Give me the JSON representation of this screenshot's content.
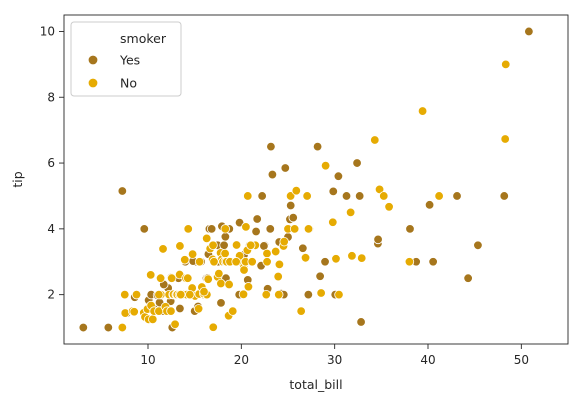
{
  "chart_data": {
    "type": "scatter",
    "title": "",
    "xlabel": "total_bill",
    "ylabel": "tip",
    "xlim": [
      1,
      55
    ],
    "ylim": [
      0.5,
      10.5
    ],
    "x_ticks": [
      10,
      20,
      30,
      40,
      50
    ],
    "y_ticks": [
      2,
      4,
      6,
      8,
      10
    ],
    "x_tick_labels": [
      "10",
      "20",
      "30",
      "40",
      "50"
    ],
    "y_tick_labels": [
      "2",
      "4",
      "6",
      "8",
      "10"
    ],
    "grid": false,
    "legend": {
      "title": "smoker",
      "placement": "top-left",
      "entries": [
        {
          "label": "Yes",
          "color": "#a6761d"
        },
        {
          "label": "No",
          "color": "#e6ab02"
        }
      ]
    },
    "series": [
      {
        "name": "Yes",
        "color": "#a6761d",
        "points": [
          [
            3.07,
            1.0
          ],
          [
            5.75,
            1.0
          ],
          [
            7.25,
            5.15
          ],
          [
            7.74,
            1.44
          ],
          [
            8.58,
            1.92
          ],
          [
            9.6,
            4.0
          ],
          [
            10.07,
            1.83
          ],
          [
            10.34,
            2.0
          ],
          [
            10.59,
            1.61
          ],
          [
            11.02,
            1.98
          ],
          [
            11.24,
            1.76
          ],
          [
            11.59,
            1.5
          ],
          [
            12.16,
            2.2
          ],
          [
            12.43,
            1.8
          ],
          [
            12.6,
            1.0
          ],
          [
            13.0,
            2.0
          ],
          [
            13.27,
            2.5
          ],
          [
            13.42,
            1.58
          ],
          [
            13.81,
            2.0
          ],
          [
            14.0,
            3.0
          ],
          [
            14.48,
            2.0
          ],
          [
            15.0,
            1.5
          ],
          [
            15.06,
            3.0
          ],
          [
            15.36,
            1.64
          ],
          [
            15.69,
            3.0
          ],
          [
            16.0,
            2.0
          ],
          [
            16.27,
            2.5
          ],
          [
            16.4,
            2.5
          ],
          [
            16.47,
            3.23
          ],
          [
            16.58,
            4.0
          ],
          [
            16.82,
            4.0
          ],
          [
            17.29,
            3.0
          ],
          [
            17.47,
            3.5
          ],
          [
            17.51,
            3.0
          ],
          [
            17.82,
            1.75
          ],
          [
            18.15,
            3.5
          ],
          [
            18.24,
            3.76
          ],
          [
            18.29,
            3.76
          ],
          [
            18.71,
            4.0
          ],
          [
            19.44,
            3.0
          ],
          [
            19.81,
            4.19
          ],
          [
            20.08,
            3.15
          ],
          [
            20.69,
            2.45
          ],
          [
            20.9,
            3.5
          ],
          [
            21.01,
            3.0
          ],
          [
            21.58,
            3.92
          ],
          [
            22.12,
            2.88
          ],
          [
            22.23,
            5.0
          ],
          [
            22.49,
            3.5
          ],
          [
            22.82,
            2.18
          ],
          [
            22.42,
            3.48
          ],
          [
            23.1,
            4.0
          ],
          [
            23.17,
            6.5
          ],
          [
            23.33,
            5.65
          ],
          [
            24.27,
            2.03
          ],
          [
            24.55,
            2.0
          ],
          [
            24.71,
            5.85
          ],
          [
            25.0,
            3.75
          ],
          [
            25.21,
            4.29
          ],
          [
            25.56,
            4.34
          ],
          [
            26.59,
            3.41
          ],
          [
            27.18,
            2.0
          ],
          [
            27.28,
            4.0
          ],
          [
            28.17,
            6.5
          ],
          [
            28.44,
            2.56
          ],
          [
            28.97,
            3.0
          ],
          [
            29.85,
            5.14
          ],
          [
            30.06,
            2.0
          ],
          [
            30.4,
            5.6
          ],
          [
            31.27,
            5.0
          ],
          [
            32.4,
            6.0
          ],
          [
            32.68,
            5.0
          ],
          [
            32.83,
            1.17
          ],
          [
            34.3,
            6.7
          ],
          [
            34.63,
            3.55
          ],
          [
            34.65,
            3.68
          ],
          [
            38.07,
            4.0
          ],
          [
            38.73,
            3.0
          ],
          [
            39.42,
            7.58
          ],
          [
            40.17,
            4.73
          ],
          [
            40.55,
            3.0
          ],
          [
            43.11,
            5.0
          ],
          [
            44.3,
            2.5
          ],
          [
            45.35,
            3.5
          ],
          [
            48.17,
            5.0
          ],
          [
            50.81,
            10.0
          ],
          [
            24.06,
            3.6
          ],
          [
            19.77,
            2.0
          ],
          [
            14.83,
            3.02
          ],
          [
            12.48,
            2.52
          ],
          [
            18.35,
            2.5
          ],
          [
            17.92,
            4.08
          ],
          [
            11.69,
            2.31
          ],
          [
            13.94,
            3.06
          ],
          [
            20.29,
            3.21
          ],
          [
            21.7,
            4.3
          ],
          [
            25.29,
            4.71
          ],
          [
            26.88,
            3.12
          ]
        ]
      },
      {
        "name": "No",
        "color": "#e6ab02",
        "points": [
          [
            7.25,
            1.0
          ],
          [
            7.51,
            2.0
          ],
          [
            7.56,
            1.44
          ],
          [
            8.35,
            1.5
          ],
          [
            8.52,
            1.48
          ],
          [
            8.77,
            2.0
          ],
          [
            9.55,
            1.45
          ],
          [
            9.68,
            1.32
          ],
          [
            9.94,
            1.56
          ],
          [
            10.07,
            1.25
          ],
          [
            10.29,
            2.6
          ],
          [
            10.33,
            1.67
          ],
          [
            10.51,
            1.25
          ],
          [
            10.65,
            1.5
          ],
          [
            11.17,
            1.5
          ],
          [
            11.35,
            2.5
          ],
          [
            11.38,
            2.0
          ],
          [
            11.61,
            3.39
          ],
          [
            11.87,
            1.63
          ],
          [
            12.03,
            1.5
          ],
          [
            12.26,
            2.0
          ],
          [
            12.46,
            1.5
          ],
          [
            12.54,
            2.5
          ],
          [
            12.69,
            2.0
          ],
          [
            12.74,
            2.01
          ],
          [
            13.03,
            2.0
          ],
          [
            13.13,
            2.0
          ],
          [
            13.37,
            2.0
          ],
          [
            13.39,
            2.61
          ],
          [
            13.42,
            3.48
          ],
          [
            13.81,
            2.0
          ],
          [
            13.94,
            3.06
          ],
          [
            14.07,
            2.5
          ],
          [
            14.15,
            2.0
          ],
          [
            14.26,
            2.5
          ],
          [
            14.31,
            4.0
          ],
          [
            14.52,
            2.0
          ],
          [
            14.73,
            2.2
          ],
          [
            14.78,
            3.23
          ],
          [
            15.04,
            1.96
          ],
          [
            15.42,
            1.57
          ],
          [
            15.48,
            2.02
          ],
          [
            15.53,
            3.0
          ],
          [
            15.77,
            2.23
          ],
          [
            15.98,
            2.03
          ],
          [
            16.29,
            3.71
          ],
          [
            16.31,
            2.0
          ],
          [
            16.45,
            2.47
          ],
          [
            16.66,
            3.4
          ],
          [
            16.93,
            3.07
          ],
          [
            16.97,
            3.5
          ],
          [
            16.99,
            1.01
          ],
          [
            17.46,
            2.54
          ],
          [
            17.59,
            2.64
          ],
          [
            17.78,
            3.27
          ],
          [
            17.81,
            2.34
          ],
          [
            17.92,
            3.08
          ],
          [
            18.04,
            3.0
          ],
          [
            18.26,
            3.25
          ],
          [
            18.28,
            4.0
          ],
          [
            18.29,
            3.0
          ],
          [
            18.43,
            3.0
          ],
          [
            18.64,
            1.36
          ],
          [
            18.69,
            2.31
          ],
          [
            18.78,
            3.0
          ],
          [
            19.08,
            1.5
          ],
          [
            19.49,
            3.51
          ],
          [
            19.65,
            3.0
          ],
          [
            19.82,
            3.18
          ],
          [
            20.23,
            2.01
          ],
          [
            20.27,
            2.83
          ],
          [
            20.29,
            2.75
          ],
          [
            20.45,
            3.0
          ],
          [
            20.49,
            4.06
          ],
          [
            20.65,
            3.35
          ],
          [
            20.69,
            5.0
          ],
          [
            20.76,
            2.24
          ],
          [
            21.16,
            3.0
          ],
          [
            21.5,
            3.5
          ],
          [
            22.67,
            2.0
          ],
          [
            22.75,
            3.25
          ],
          [
            23.68,
            3.31
          ],
          [
            23.95,
            2.55
          ],
          [
            24.08,
            2.92
          ],
          [
            24.52,
            3.48
          ],
          [
            24.59,
            3.61
          ],
          [
            25.0,
            4.0
          ],
          [
            25.28,
            5.0
          ],
          [
            25.89,
            5.16
          ],
          [
            26.41,
            1.5
          ],
          [
            26.86,
            3.14
          ],
          [
            27.2,
            4.0
          ],
          [
            28.55,
            2.05
          ],
          [
            29.03,
            5.92
          ],
          [
            29.8,
            4.2
          ],
          [
            30.14,
            3.09
          ],
          [
            30.46,
            2.0
          ],
          [
            31.71,
            4.5
          ],
          [
            31.85,
            3.18
          ],
          [
            34.81,
            5.2
          ],
          [
            35.26,
            5.0
          ],
          [
            35.83,
            4.67
          ],
          [
            38.01,
            3.0
          ],
          [
            39.42,
            7.58
          ],
          [
            41.19,
            5.0
          ],
          [
            48.27,
            6.73
          ],
          [
            48.33,
            9.0
          ],
          [
            11.17,
            2.0
          ],
          [
            12.9,
            1.1
          ],
          [
            13.51,
            2.0
          ],
          [
            14.48,
            2.0
          ],
          [
            16.0,
            2.09
          ],
          [
            17.07,
            3.0
          ],
          [
            19.44,
            3.0
          ],
          [
            21.01,
            3.5
          ],
          [
            22.76,
            3.0
          ],
          [
            24.01,
            2.0
          ],
          [
            25.71,
            4.0
          ],
          [
            26.88,
            3.12
          ],
          [
            27.05,
            5.0
          ],
          [
            32.9,
            3.11
          ],
          [
            34.3,
            6.7
          ]
        ]
      }
    ]
  }
}
